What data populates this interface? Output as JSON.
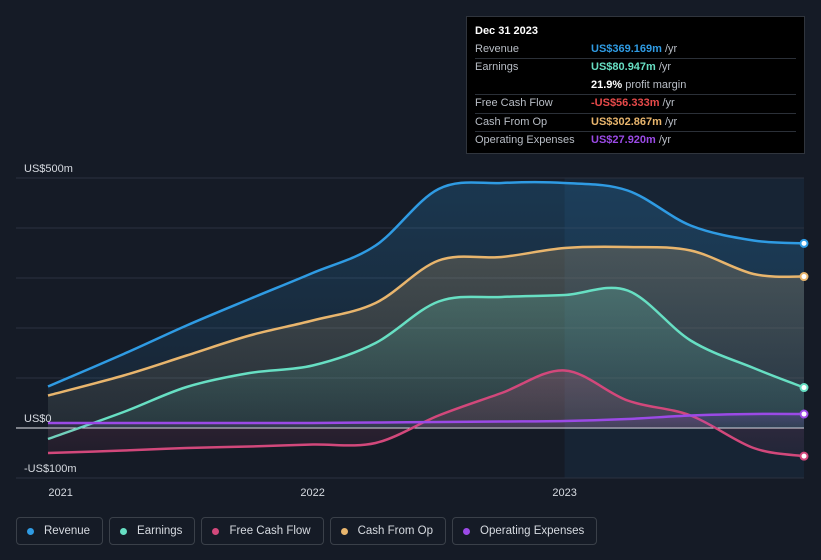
{
  "chart_data": {
    "type": "area",
    "x": [
      2020.95,
      2021.25,
      2021.5,
      2021.75,
      2022.0,
      2022.25,
      2022.5,
      2022.75,
      2023.0,
      2023.25,
      2023.5,
      2023.75,
      2023.95
    ],
    "x_ticks": [
      {
        "value": 2021.0,
        "label": "2021"
      },
      {
        "value": 2022.0,
        "label": "2022"
      },
      {
        "value": 2023.0,
        "label": "2023"
      }
    ],
    "y_ticks": [
      {
        "value": 500,
        "label": "US$500m"
      },
      {
        "value": 0,
        "label": "US$0"
      },
      {
        "value": -100,
        "label": "-US$100m"
      }
    ],
    "ylim": [
      -100,
      500
    ],
    "highlight_start": 2023.0,
    "series": [
      {
        "name": "Revenue",
        "color": "#2f9be3",
        "values": [
          83,
          148,
          205,
          258,
          310,
          365,
          478,
          490,
          490,
          475,
          405,
          375,
          369.2
        ]
      },
      {
        "name": "Cash From Op",
        "color": "#e8b56d",
        "values": [
          65,
          105,
          145,
          185,
          215,
          250,
          335,
          342,
          360,
          362,
          355,
          308,
          302.9
        ]
      },
      {
        "name": "Earnings",
        "color": "#67dfc3",
        "values": [
          -22,
          32,
          82,
          110,
          125,
          170,
          253,
          262,
          266,
          275,
          175,
          120,
          80.9
        ]
      },
      {
        "name": "Free Cash Flow",
        "color": "#d2487b",
        "values": [
          -50,
          -45,
          -40,
          -37,
          -33,
          -30,
          25,
          70,
          115,
          55,
          25,
          -40,
          -56.3
        ]
      },
      {
        "name": "Operating Expenses",
        "color": "#9b4ae6",
        "values": [
          10,
          10,
          10,
          10,
          10,
          11,
          12,
          13,
          14,
          18,
          25,
          28,
          27.9
        ]
      }
    ]
  },
  "tooltip": {
    "date": "Dec 31 2023",
    "unit": "/yr",
    "rows": [
      {
        "label": "Revenue",
        "value": "US$369.169m",
        "color": "#2f9be3"
      },
      {
        "label": "Earnings",
        "value": "US$80.947m",
        "color": "#67dfc3"
      },
      {
        "label": "",
        "value": "21.9%",
        "color": "#ffffff",
        "suffix": "profit margin"
      },
      {
        "label": "Free Cash Flow",
        "value": "-US$56.333m",
        "color": "#e84a4a"
      },
      {
        "label": "Cash From Op",
        "value": "US$302.867m",
        "color": "#e8b56d"
      },
      {
        "label": "Operating Expenses",
        "value": "US$27.920m",
        "color": "#9b4ae6"
      }
    ]
  },
  "legend": [
    {
      "label": "Revenue",
      "color": "#2f9be3"
    },
    {
      "label": "Earnings",
      "color": "#67dfc3"
    },
    {
      "label": "Free Cash Flow",
      "color": "#d2487b"
    },
    {
      "label": "Cash From Op",
      "color": "#e8b56d"
    },
    {
      "label": "Operating Expenses",
      "color": "#9b4ae6"
    }
  ]
}
